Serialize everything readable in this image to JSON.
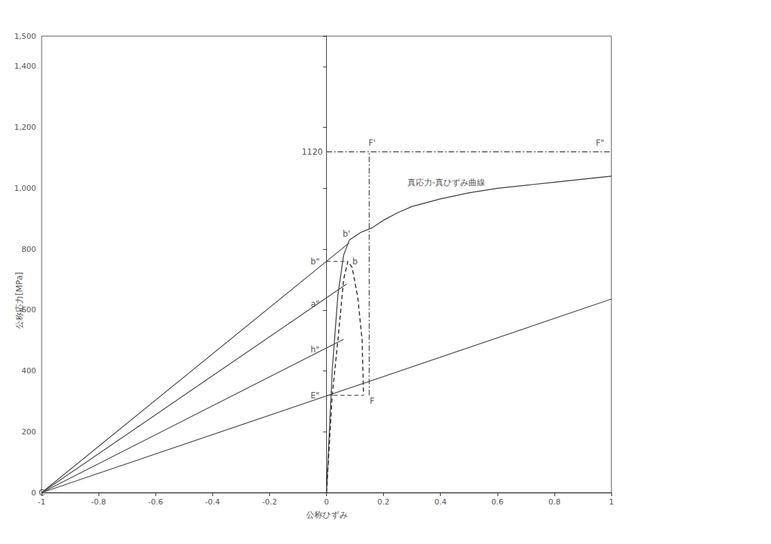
{
  "chart_data": {
    "type": "line",
    "xlabel": "公称ひずみ",
    "ylabel": "公称応力[MPa]",
    "xlim": [
      -1,
      1
    ],
    "xticks": [
      -1,
      -0.8,
      -0.6,
      -0.4,
      -0.2,
      0,
      0.2,
      0.4,
      0.6,
      0.8,
      1
    ],
    "ylim": [
      0,
      1500
    ],
    "yticks": [
      0,
      200,
      400,
      600,
      800,
      1000,
      1200,
      1400
    ],
    "grid": false,
    "series": [
      {
        "name": "真応力-真ひずみ曲線",
        "color": "#333333",
        "line_style": "solid",
        "x": [
          0,
          0.02,
          0.04,
          0.06,
          0.08,
          0.12,
          0.16,
          0.2,
          0.25,
          0.3,
          0.4,
          0.5,
          0.6,
          0.8,
          1.0
        ],
        "values": [
          0,
          400,
          650,
          780,
          830,
          855,
          870,
          895,
          920,
          940,
          965,
          985,
          1000,
          1020,
          1040
        ]
      },
      {
        "color": "#222222",
        "line_style": "dashed",
        "x": [
          0,
          0.02,
          0.04,
          0.05,
          0.06,
          0.075,
          0.09,
          0.11,
          0.125,
          0.13
        ],
        "values": [
          0,
          320,
          500,
          600,
          700,
          760,
          740,
          640,
          500,
          320
        ]
      },
      {
        "color": "#444444",
        "line_style": "solid",
        "x": [
          -1,
          0.08
        ],
        "values": [
          0,
          821
        ]
      },
      {
        "color": "#444444",
        "line_style": "solid",
        "x": [
          -1,
          0.07
        ],
        "values": [
          0,
          685
        ]
      },
      {
        "color": "#444444",
        "line_style": "solid",
        "x": [
          -1,
          0.06
        ],
        "values": [
          0,
          504
        ]
      },
      {
        "color": "#444444",
        "line_style": "solid",
        "x": [
          -1,
          1
        ],
        "values": [
          0,
          636
        ]
      },
      {
        "color": "#555555",
        "line_style": "dashdot",
        "x": [
          0,
          1
        ],
        "values": [
          1120,
          1120
        ]
      },
      {
        "color": "#555555",
        "line_style": "dashdot",
        "x": [
          0.15,
          0.15
        ],
        "values": [
          320,
          1120
        ]
      },
      {
        "color": "#555555",
        "line_style": "dashed",
        "x": [
          0,
          0.13
        ],
        "values": [
          320,
          320
        ]
      },
      {
        "color": "#555555",
        "line_style": "dashed",
        "x": [
          0,
          0.075
        ],
        "values": [
          760,
          760
        ]
      }
    ],
    "annotations": [
      {
        "text": "真応力-真ひずみ曲線",
        "x": 0.42,
        "y": 1020
      },
      {
        "text": "C",
        "x": -1,
        "y": 0
      },
      {
        "text": "b",
        "x": 0.1,
        "y": 760
      },
      {
        "text": "b'",
        "x": 0.07,
        "y": 850
      },
      {
        "text": "b\"",
        "x": -0.04,
        "y": 760
      },
      {
        "text": "a\"",
        "x": -0.04,
        "y": 620
      },
      {
        "text": "h\"",
        "x": -0.04,
        "y": 470
      },
      {
        "text": "E\"",
        "x": -0.04,
        "y": 320
      },
      {
        "text": "F",
        "x": 0.16,
        "y": 300
      },
      {
        "text": "F'",
        "x": 0.16,
        "y": 1150
      },
      {
        "text": "F\"",
        "x": 0.96,
        "y": 1150
      },
      {
        "text": "1120",
        "x": -0.05,
        "y": 1120
      }
    ]
  }
}
